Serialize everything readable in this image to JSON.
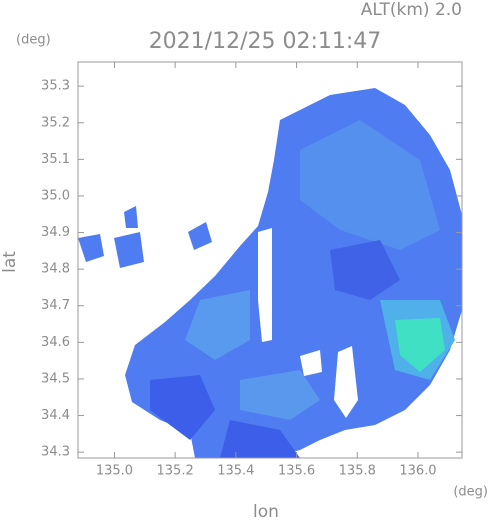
{
  "chart_data": {
    "type": "radar-map",
    "altitude_label": "ALT(km) 2.0",
    "y_unit": "(deg)",
    "title": "2021/12/25 02:11:47",
    "ylabel": "lat",
    "xlabel": "lon",
    "x_unit": "(deg)",
    "xlim": [
      134.88,
      136.145
    ],
    "ylim": [
      34.284,
      35.366
    ],
    "xticks": [
      {
        "value": 135,
        "label": "135.0"
      },
      135.2,
      135.4,
      135.6,
      135.8,
      {
        "value": 136,
        "label": "136.0"
      }
    ],
    "yticks": [
      34.3,
      34.4,
      34.5,
      34.6,
      34.7,
      34.8,
      34.9,
      {
        "value": 35,
        "label": "35.0"
      },
      35.1,
      35.2,
      35.3
    ]
  }
}
